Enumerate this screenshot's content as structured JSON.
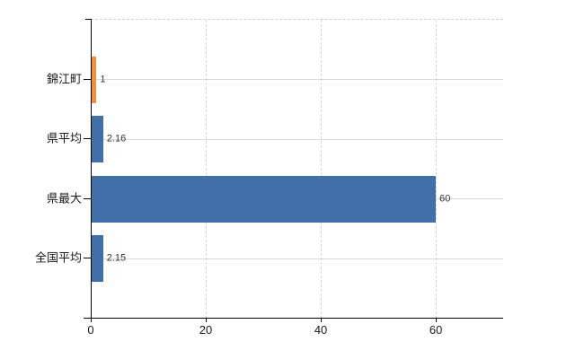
{
  "chart_data": {
    "type": "bar",
    "orientation": "horizontal",
    "title": "",
    "xlabel": "",
    "ylabel": "",
    "categories": [
      "錦江町",
      "県平均",
      "県最大",
      "全国平均"
    ],
    "values": [
      1,
      2.16,
      60,
      2.15
    ],
    "value_labels": [
      "1",
      "2.16",
      "60",
      "2.15"
    ],
    "bar_colors": [
      "#ED9235",
      "#4170A8",
      "#4170A8",
      "#4170A8"
    ],
    "xlim": [
      0,
      71.7
    ],
    "x_ticks": [
      0,
      20,
      40,
      60
    ],
    "x_tick_labels": [
      "0",
      "20",
      "40",
      "60"
    ],
    "grid": true,
    "legend_position": "none"
  },
  "colors": {
    "bar_blue": "#4170A8",
    "bar_orange": "#ED9235",
    "axis": "#000000",
    "gridline_horizontal": "#d4ddd4",
    "gridline_vertical": "#d7d6de",
    "plot_top_border": "#d2ced2",
    "text": "#1a1a1a",
    "value_label_text": "#333333",
    "background": "#ffffff"
  }
}
